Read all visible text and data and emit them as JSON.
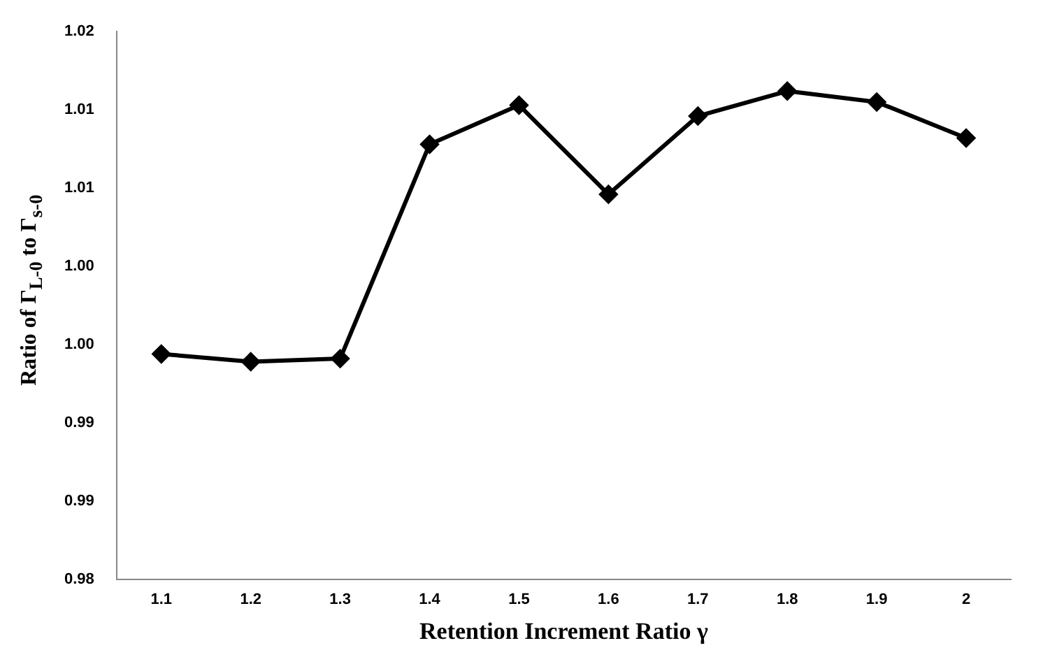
{
  "chart_data": {
    "type": "line",
    "xlabel": "Retention Increment Ratio γ",
    "ylabel": "Ratio of Γ$_{L-0}$ to Γ$_{s-0}$",
    "categories": [
      "1.1",
      "1.2",
      "1.3",
      "1.4",
      "1.5",
      "1.6",
      "1.7",
      "1.8",
      "1.9",
      "2"
    ],
    "series": [
      {
        "color": "#000000",
        "values": [
          0.9944,
          0.9939,
          0.9941,
          1.0078,
          1.0103,
          1.0046,
          1.0096,
          1.0112,
          1.0105,
          1.0082
        ]
      }
    ],
    "ylim": [
      0.98,
      1.015
    ],
    "yticks": [
      {
        "value": 0.98,
        "label": "0.98"
      },
      {
        "value": 0.985,
        "label": "0.99"
      },
      {
        "value": 0.99,
        "label": "0.99"
      },
      {
        "value": 0.995,
        "label": "1.00"
      },
      {
        "value": 1.0,
        "label": "1.00"
      },
      {
        "value": 1.005,
        "label": "1.01"
      },
      {
        "value": 1.01,
        "label": "1.01"
      },
      {
        "value": 1.015,
        "label": "1.02"
      }
    ],
    "grid": false,
    "legend": false,
    "marker": "diamond",
    "line_style": "solid"
  }
}
